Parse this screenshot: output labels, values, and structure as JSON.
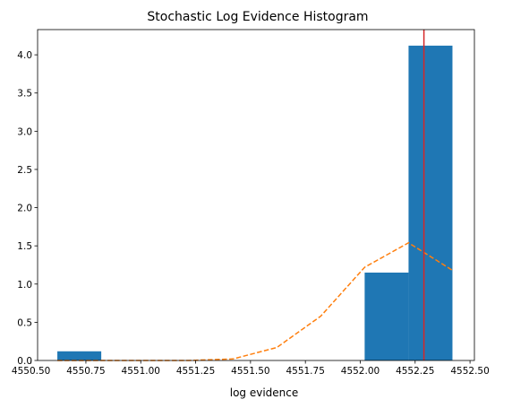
{
  "chart_data": {
    "type": "bar",
    "title": "Stochastic Log Evidence Histogram",
    "xlabel": "log evidence",
    "ylabel": "",
    "xlim": [
      4550.53,
      4552.52
    ],
    "ylim": [
      0,
      4.33
    ],
    "xticks": [
      4550.5,
      4550.75,
      4551.0,
      4551.25,
      4551.5,
      4551.75,
      4552.0,
      4552.25,
      4552.5
    ],
    "xtick_labels": [
      "4550.50",
      "4550.75",
      "4551.00",
      "4551.25",
      "4551.50",
      "4551.75",
      "4552.00",
      "4552.25",
      "4552.50"
    ],
    "yticks": [
      0,
      0.5,
      1.0,
      1.5,
      2.0,
      2.5,
      3.0,
      3.5,
      4.0
    ],
    "ytick_labels": [
      "0.0",
      "0.5",
      "1.0",
      "1.5",
      "2.0",
      "2.5",
      "3.0",
      "3.5",
      "4.0"
    ],
    "grid": false,
    "bars": [
      {
        "x0": 4550.62,
        "x1": 4550.82,
        "value": 0.12
      },
      {
        "x0": 4552.02,
        "x1": 4552.22,
        "value": 1.15
      },
      {
        "x0": 4552.22,
        "x1": 4552.42,
        "value": 4.12
      }
    ],
    "density_curve": {
      "x": [
        4550.62,
        4550.82,
        4551.02,
        4551.22,
        4551.42,
        4551.62,
        4551.82,
        4552.02,
        4552.22,
        4552.42
      ],
      "y": [
        0.0,
        0.0,
        0.0,
        0.0,
        0.02,
        0.17,
        0.58,
        1.22,
        1.54,
        1.18
      ]
    },
    "vline": {
      "x": 4552.29
    },
    "colors": {
      "bars": "#1f77b4",
      "curve": "#ff7f0e",
      "vline": "#d62728",
      "axes": "#000000"
    }
  }
}
